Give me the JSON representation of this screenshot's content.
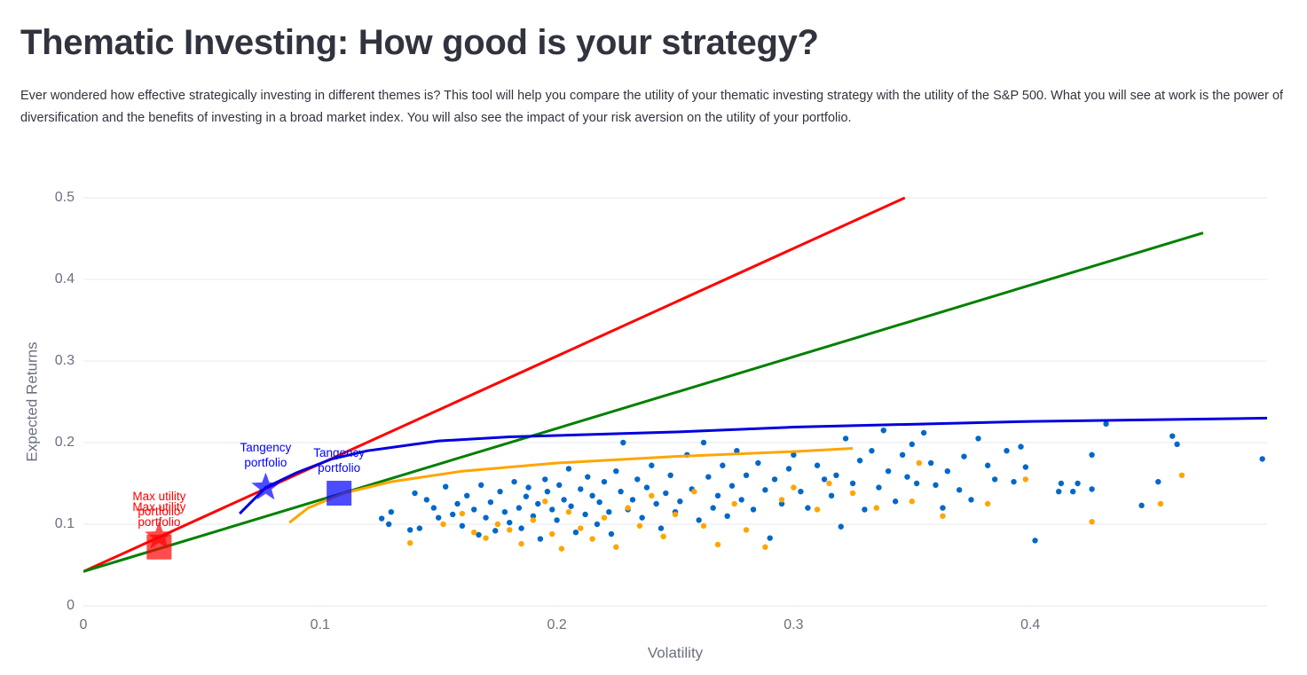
{
  "header": {
    "title": "Thematic Investing: How good is your strategy?",
    "description": "Ever wondered how effective strategically investing in different themes is? This tool will help you compare the utility of your thematic investing strategy with the utility of the S&P 500. What you will see at work is the power of diversification and the benefits of investing in a broad market index. You will also see the impact of your risk aversion on the utility of your portfolio."
  },
  "chart_data": {
    "type": "scatter",
    "x_label": "Volatility",
    "y_label": "Expected Returns",
    "xlim": [
      0,
      0.5
    ],
    "ylim": [
      0,
      0.5
    ],
    "xticks": [
      0,
      0.1,
      0.2,
      0.3,
      0.4
    ],
    "yticks": [
      0,
      0.1,
      0.2,
      0.3,
      0.4,
      0.5
    ],
    "grid": "y",
    "series": [
      {
        "mode": "markers",
        "color": "#0068c9",
        "x": [
          0.126,
          0.13,
          0.129,
          0.138,
          0.142,
          0.14,
          0.145,
          0.148,
          0.15,
          0.153,
          0.156,
          0.158,
          0.16,
          0.162,
          0.165,
          0.167,
          0.168,
          0.17,
          0.172,
          0.174,
          0.176,
          0.178,
          0.18,
          0.182,
          0.184,
          0.185,
          0.187,
          0.188,
          0.19,
          0.192,
          0.193,
          0.195,
          0.196,
          0.198,
          0.2,
          0.201,
          0.203,
          0.205,
          0.206,
          0.208,
          0.21,
          0.212,
          0.213,
          0.215,
          0.217,
          0.218,
          0.22,
          0.222,
          0.223,
          0.225,
          0.227,
          0.228,
          0.23,
          0.232,
          0.234,
          0.236,
          0.238,
          0.24,
          0.242,
          0.244,
          0.246,
          0.248,
          0.25,
          0.252,
          0.255,
          0.257,
          0.26,
          0.262,
          0.264,
          0.266,
          0.268,
          0.27,
          0.272,
          0.274,
          0.276,
          0.278,
          0.28,
          0.283,
          0.285,
          0.288,
          0.29,
          0.292,
          0.295,
          0.298,
          0.3,
          0.303,
          0.306,
          0.31,
          0.313,
          0.316,
          0.318,
          0.32,
          0.322,
          0.325,
          0.328,
          0.33,
          0.333,
          0.336,
          0.338,
          0.34,
          0.343,
          0.346,
          0.348,
          0.35,
          0.352,
          0.355,
          0.358,
          0.36,
          0.363,
          0.365,
          0.37,
          0.372,
          0.375,
          0.378,
          0.382,
          0.385,
          0.39,
          0.393,
          0.396,
          0.398,
          0.402,
          0.412,
          0.413,
          0.418,
          0.42,
          0.426,
          0.426,
          0.432,
          0.447,
          0.454,
          0.46,
          0.462,
          0.498
        ],
        "values": [
          0.107,
          0.115,
          0.1,
          0.093,
          0.095,
          0.138,
          0.13,
          0.12,
          0.108,
          0.146,
          0.112,
          0.125,
          0.098,
          0.135,
          0.118,
          0.087,
          0.148,
          0.108,
          0.127,
          0.092,
          0.14,
          0.115,
          0.102,
          0.152,
          0.12,
          0.095,
          0.134,
          0.145,
          0.11,
          0.125,
          0.082,
          0.155,
          0.14,
          0.118,
          0.105,
          0.148,
          0.13,
          0.168,
          0.122,
          0.09,
          0.143,
          0.112,
          0.158,
          0.135,
          0.1,
          0.127,
          0.152,
          0.115,
          0.088,
          0.165,
          0.14,
          0.2,
          0.118,
          0.13,
          0.155,
          0.108,
          0.145,
          0.172,
          0.125,
          0.095,
          0.138,
          0.16,
          0.115,
          0.128,
          0.185,
          0.143,
          0.105,
          0.2,
          0.158,
          0.12,
          0.135,
          0.172,
          0.11,
          0.147,
          0.19,
          0.13,
          0.16,
          0.118,
          0.175,
          0.142,
          0.083,
          0.155,
          0.125,
          0.168,
          0.185,
          0.14,
          0.12,
          0.172,
          0.155,
          0.135,
          0.16,
          0.097,
          0.205,
          0.15,
          0.178,
          0.118,
          0.19,
          0.145,
          0.215,
          0.165,
          0.128,
          0.185,
          0.158,
          0.198,
          0.15,
          0.212,
          0.175,
          0.148,
          0.12,
          0.165,
          0.142,
          0.183,
          0.13,
          0.205,
          0.172,
          0.155,
          0.19,
          0.152,
          0.195,
          0.17,
          0.08,
          0.14,
          0.15,
          0.14,
          0.15,
          0.143,
          0.185,
          0.223,
          0.123,
          0.152,
          0.208,
          0.198,
          0.18
        ]
      },
      {
        "mode": "markers",
        "color": "#ffa500",
        "x": [
          0.138,
          0.152,
          0.16,
          0.165,
          0.17,
          0.175,
          0.18,
          0.185,
          0.19,
          0.195,
          0.198,
          0.202,
          0.205,
          0.21,
          0.215,
          0.22,
          0.225,
          0.23,
          0.235,
          0.24,
          0.245,
          0.25,
          0.258,
          0.262,
          0.268,
          0.275,
          0.28,
          0.288,
          0.295,
          0.3,
          0.31,
          0.315,
          0.325,
          0.335,
          0.35,
          0.353,
          0.363,
          0.382,
          0.398,
          0.426,
          0.455,
          0.464
        ],
        "values": [
          0.077,
          0.1,
          0.113,
          0.09,
          0.083,
          0.1,
          0.093,
          0.076,
          0.105,
          0.128,
          0.088,
          0.07,
          0.115,
          0.095,
          0.082,
          0.108,
          0.072,
          0.12,
          0.098,
          0.135,
          0.085,
          0.112,
          0.14,
          0.098,
          0.075,
          0.125,
          0.093,
          0.072,
          0.13,
          0.145,
          0.118,
          0.15,
          0.138,
          0.12,
          0.128,
          0.175,
          0.11,
          0.125,
          0.155,
          0.103,
          0.125,
          0.16
        ]
      },
      {
        "mode": "lines",
        "color": "#ff0000",
        "x": [
          0,
          0.347
        ],
        "values": [
          0.042,
          0.5
        ]
      },
      {
        "mode": "lines",
        "color": "#008000",
        "x": [
          0,
          0.473
        ],
        "values": [
          0.042,
          0.457
        ]
      },
      {
        "mode": "lines",
        "color": "#0000dd",
        "x": [
          0.066,
          0.077,
          0.09,
          0.105,
          0.12,
          0.15,
          0.18,
          0.25,
          0.3,
          0.4,
          0.5
        ],
        "values": [
          0.113,
          0.145,
          0.163,
          0.18,
          0.19,
          0.202,
          0.207,
          0.213,
          0.219,
          0.226,
          0.23
        ]
      },
      {
        "mode": "lines",
        "color": "#ffa500",
        "x": [
          0.087,
          0.095,
          0.11,
          0.13,
          0.16,
          0.2,
          0.25,
          0.3,
          0.325
        ],
        "values": [
          0.102,
          0.12,
          0.138,
          0.152,
          0.165,
          0.175,
          0.183,
          0.189,
          0.193
        ]
      }
    ],
    "markers": [
      {
        "label": "Max utility portfolio",
        "symbol": "square",
        "color": "#ff0000",
        "x": 0.032,
        "y": 0.072
      },
      {
        "label": "Max utility portfolio",
        "symbol": "star",
        "color": "#ff0000",
        "x": 0.032,
        "y": 0.085
      },
      {
        "label": "Tangency portfolio",
        "symbol": "star",
        "color": "#0000ff",
        "x": 0.077,
        "y": 0.145
      },
      {
        "label": "Tangency portfolio",
        "symbol": "square",
        "color": "#0000ff",
        "x": 0.108,
        "y": 0.138
      }
    ]
  }
}
